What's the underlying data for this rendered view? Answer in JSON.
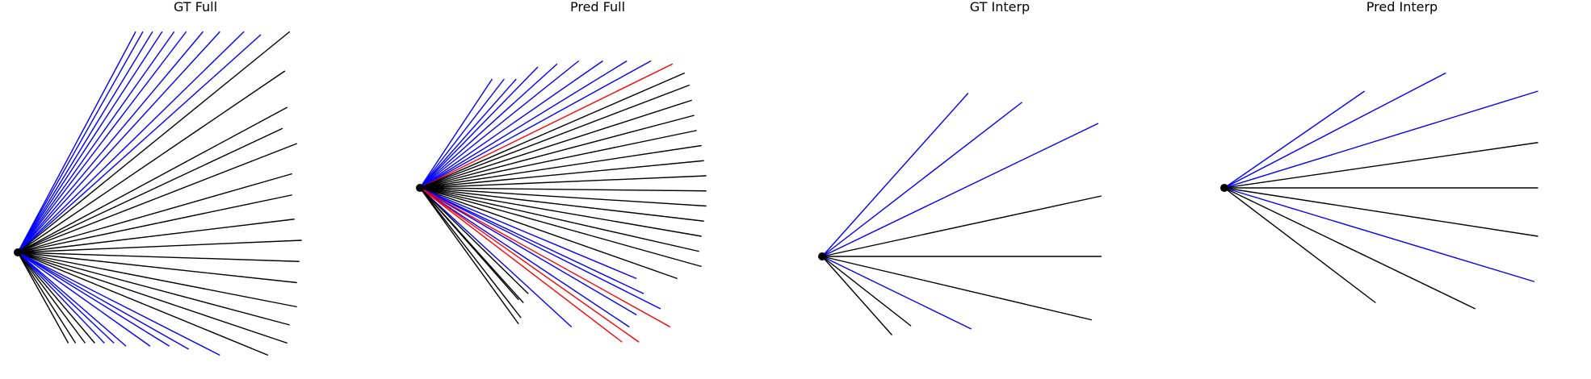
{
  "colors": {
    "base": "#000000",
    "highlight": "#0000ff",
    "error": "#ff0000"
  },
  "chart_data": [
    {
      "type": "line",
      "title": "GT Full",
      "origin": [
        0,
        0
      ],
      "series": [
        {
          "kind": "highlight",
          "endpoints": [
            [
              4.9,
              7.3
            ],
            [
              5.2,
              7.3
            ],
            [
              5.6,
              7.3
            ],
            [
              6.0,
              7.3
            ],
            [
              6.5,
              7.3
            ],
            [
              7.0,
              7.3
            ],
            [
              7.7,
              7.3
            ],
            [
              8.4,
              7.3
            ],
            [
              9.4,
              7.3
            ],
            [
              10.1,
              7.2
            ]
          ]
        },
        {
          "kind": "base",
          "endpoints": [
            [
              11.3,
              7.3
            ],
            [
              11.1,
              6.0
            ],
            [
              11.2,
              4.8
            ],
            [
              11.0,
              4.1
            ],
            [
              11.6,
              3.6
            ],
            [
              11.4,
              2.6
            ],
            [
              11.4,
              1.9
            ],
            [
              11.5,
              1.1
            ],
            [
              11.8,
              0.4
            ],
            [
              11.7,
              -0.3
            ],
            [
              11.6,
              -1.0
            ],
            [
              11.6,
              -1.8
            ],
            [
              11.3,
              -2.4
            ],
            [
              11.2,
              -3.0
            ],
            [
              10.4,
              -3.4
            ]
          ]
        },
        {
          "kind": "highlight",
          "endpoints": [
            [
              8.4,
              -3.4
            ],
            [
              7.1,
              -3.2
            ],
            [
              6.3,
              -3.1
            ],
            [
              5.5,
              -3.1
            ],
            [
              4.5,
              -3.1
            ],
            [
              4.0,
              -3.0
            ],
            [
              3.6,
              -3.0
            ]
          ]
        },
        {
          "kind": "base",
          "endpoints": [
            [
              3.2,
              -3.0
            ],
            [
              2.8,
              -3.0
            ],
            [
              2.4,
              -3.0
            ],
            [
              2.1,
              -3.0
            ]
          ]
        }
      ]
    },
    {
      "type": "line",
      "title": "Pred Full",
      "origin": [
        0,
        0
      ],
      "series": [
        {
          "kind": "highlight",
          "endpoints": [
            [
              3.0,
              3.6
            ],
            [
              3.5,
              3.6
            ],
            [
              4.0,
              3.6
            ],
            [
              4.9,
              4.0
            ],
            [
              5.7,
              4.1
            ],
            [
              6.6,
              4.2
            ],
            [
              7.6,
              4.2
            ],
            [
              8.6,
              4.2
            ],
            [
              9.6,
              4.2
            ]
          ]
        },
        {
          "kind": "error",
          "endpoints": [
            [
              10.5,
              4.1
            ]
          ]
        },
        {
          "kind": "base",
          "endpoints": [
            [
              11.0,
              3.8
            ],
            [
              11.2,
              3.4
            ],
            [
              11.3,
              2.9
            ],
            [
              11.4,
              2.4
            ],
            [
              11.5,
              1.9
            ],
            [
              11.7,
              1.4
            ],
            [
              11.8,
              0.9
            ],
            [
              11.9,
              0.4
            ],
            [
              11.9,
              -0.1
            ],
            [
              11.9,
              -0.6
            ],
            [
              11.8,
              -1.1
            ],
            [
              11.7,
              -1.6
            ],
            [
              11.6,
              -2.1
            ],
            [
              11.7,
              -2.6
            ],
            [
              10.7,
              -3.0
            ]
          ]
        },
        {
          "kind": "highlight",
          "endpoints": [
            [
              9.0,
              -3.0
            ],
            [
              9.3,
              -3.5
            ],
            [
              10.0,
              -4.0
            ],
            [
              9.0,
              -4.2
            ],
            [
              8.7,
              -4.6
            ]
          ]
        },
        {
          "kind": "error",
          "endpoints": [
            [
              10.4,
              -4.6
            ],
            [
              9.1,
              -5.1
            ],
            [
              8.4,
              -5.1
            ]
          ]
        },
        {
          "kind": "highlight",
          "endpoints": [
            [
              6.3,
              -4.6
            ]
          ]
        },
        {
          "kind": "base",
          "endpoints": [
            [
              4.1,
              -3.7
            ],
            [
              4.5,
              -3.5
            ],
            [
              4.3,
              -3.8
            ],
            [
              4.2,
              -4.3
            ],
            [
              4.1,
              -4.5
            ]
          ]
        }
      ]
    },
    {
      "type": "line",
      "title": "GT Interp",
      "origin": [
        0,
        0
      ],
      "series": [
        {
          "kind": "highlight",
          "endpoints": [
            [
              4.6,
              5.4
            ],
            [
              6.3,
              5.1
            ],
            [
              8.7,
              4.4
            ]
          ]
        },
        {
          "kind": "base",
          "endpoints": [
            [
              8.8,
              2.0
            ],
            [
              8.8,
              0.0
            ],
            [
              8.5,
              -2.1
            ]
          ]
        },
        {
          "kind": "highlight",
          "endpoints": [
            [
              4.7,
              -2.4
            ]
          ]
        },
        {
          "kind": "base",
          "endpoints": [
            [
              2.8,
              -2.3
            ],
            [
              2.2,
              -2.6
            ]
          ]
        }
      ]
    },
    {
      "type": "line",
      "title": "Pred Interp",
      "origin": [
        0,
        0
      ],
      "series": [
        {
          "kind": "highlight",
          "endpoints": [
            [
              3.8,
              3.2
            ],
            [
              6.0,
              3.8
            ],
            [
              8.5,
              3.2
            ]
          ]
        },
        {
          "kind": "base",
          "endpoints": [
            [
              8.5,
              1.5
            ],
            [
              8.5,
              0.0
            ],
            [
              8.5,
              -1.6
            ]
          ]
        },
        {
          "kind": "highlight",
          "endpoints": [
            [
              8.4,
              -3.1
            ]
          ]
        },
        {
          "kind": "base",
          "endpoints": [
            [
              6.8,
              -4.0
            ],
            [
              4.1,
              -3.8
            ]
          ]
        }
      ]
    }
  ]
}
